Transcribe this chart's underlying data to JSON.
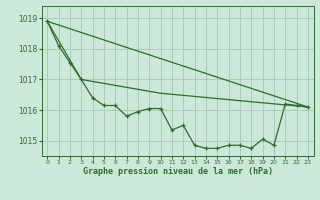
{
  "background_color": "#cce8d8",
  "grid_color": "#aaccb8",
  "line_color": "#2d6e2d",
  "text_color": "#2d6e2d",
  "xlabel": "Graphe pression niveau de la mer (hPa)",
  "xlim": [
    -0.5,
    23.5
  ],
  "ylim": [
    1014.5,
    1019.4
  ],
  "yticks": [
    1015,
    1016,
    1017,
    1018,
    1019
  ],
  "xticks": [
    0,
    1,
    2,
    3,
    4,
    5,
    6,
    7,
    8,
    9,
    10,
    11,
    12,
    13,
    14,
    15,
    16,
    17,
    18,
    19,
    20,
    21,
    22,
    23
  ],
  "series1_x": [
    0,
    1,
    2,
    3,
    4,
    5,
    6,
    7,
    8,
    9,
    10,
    11,
    12,
    13,
    14,
    15,
    16,
    17,
    18,
    19,
    20,
    21,
    22,
    23
  ],
  "series1_y": [
    1018.9,
    1018.1,
    1017.55,
    1017.0,
    1016.4,
    1016.15,
    1016.15,
    1015.8,
    1015.95,
    1016.05,
    1016.05,
    1015.35,
    1015.5,
    1014.85,
    1014.75,
    1014.75,
    1014.85,
    1014.85,
    1014.75,
    1015.05,
    1014.85,
    1016.2,
    1016.15,
    1016.1
  ],
  "series2_x": [
    0,
    23
  ],
  "series2_y": [
    1018.9,
    1016.1
  ],
  "series3_x": [
    0,
    3,
    10,
    23
  ],
  "series3_y": [
    1018.9,
    1017.0,
    1016.55,
    1016.1
  ]
}
